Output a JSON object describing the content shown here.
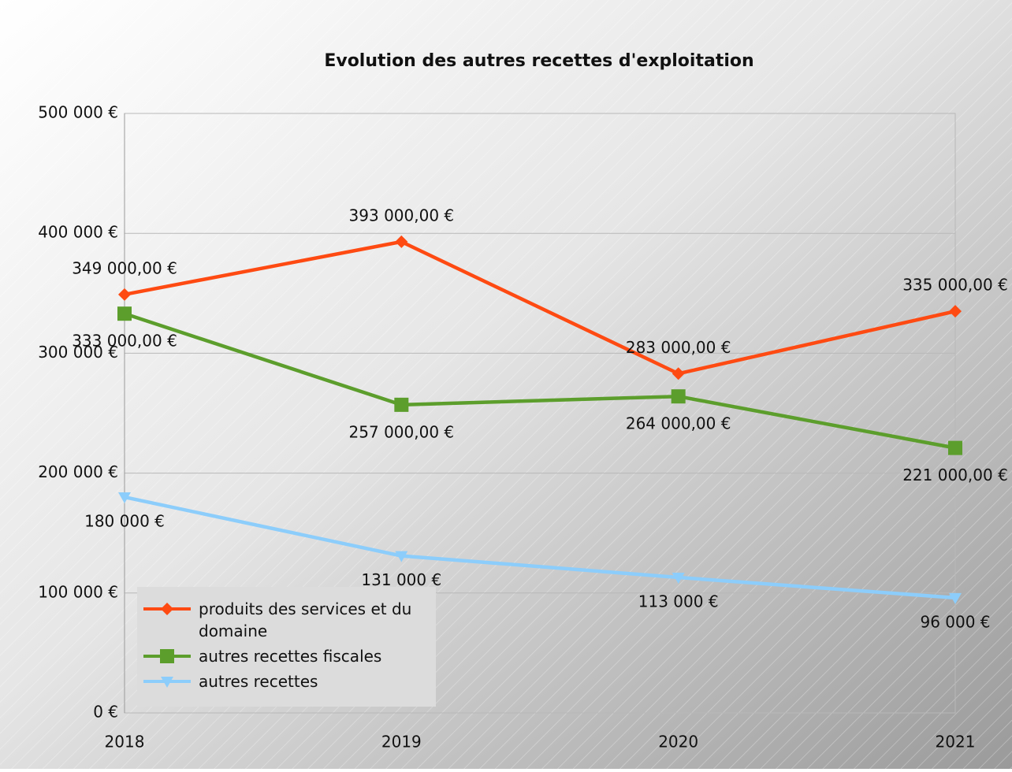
{
  "chart_data": {
    "type": "line",
    "title": "Evolution des autres recettes d'exploitation",
    "categories": [
      "2018",
      "2019",
      "2020",
      "2021"
    ],
    "series": [
      {
        "name": "produits des services et du domaine",
        "color": "#fe4a12",
        "marker": "diamond",
        "values": [
          349000,
          393000,
          283000,
          335000
        ],
        "value_labels": [
          "349 000,00 €",
          "393 000,00 €",
          "283 000,00 €",
          "335 000,00 €"
        ]
      },
      {
        "name": "autres recettes fiscales",
        "color": "#5c9e2c",
        "marker": "square",
        "values": [
          333000,
          257000,
          264000,
          221000
        ],
        "value_labels": [
          "333 000,00 €",
          "257 000,00 €",
          "264 000,00 €",
          "221 000,00 €"
        ]
      },
      {
        "name": "autres recettes",
        "color": "#8ccdfb",
        "marker": "triangle-down",
        "values": [
          180000,
          131000,
          113000,
          96000
        ],
        "value_labels": [
          "180 000 €",
          "131 000 €",
          "113 000 €",
          "96 000 €"
        ]
      }
    ],
    "ylim": [
      0,
      500000
    ],
    "yticks": [
      {
        "value": 0,
        "label": "0 €"
      },
      {
        "value": 100000,
        "label": "100 000 €"
      },
      {
        "value": 200000,
        "label": "200 000 €"
      },
      {
        "value": 300000,
        "label": "300 000 €"
      },
      {
        "value": 400000,
        "label": "400 000 €"
      },
      {
        "value": 500000,
        "label": "500 000 €"
      }
    ],
    "grid": true,
    "legend": "bottom-left"
  }
}
